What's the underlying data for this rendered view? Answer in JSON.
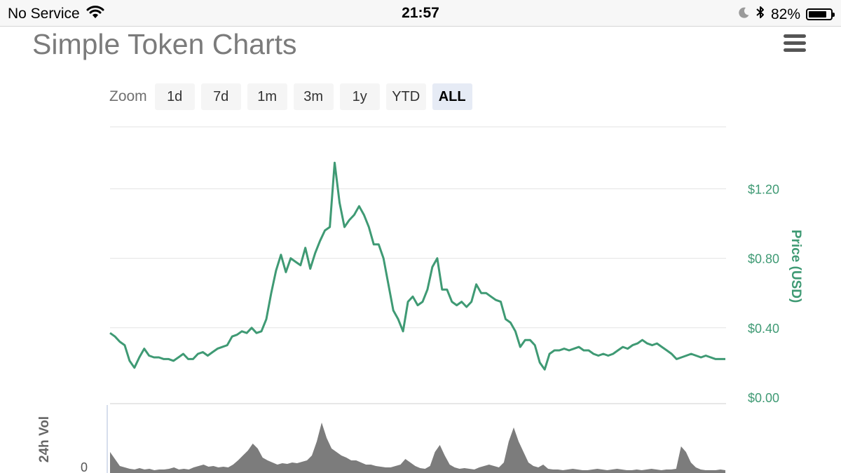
{
  "status_bar": {
    "carrier": "No Service",
    "time": "21:57",
    "battery_percent": "82%",
    "battery_level": 0.82,
    "icons": [
      "wifi-icon",
      "moon-icon",
      "bluetooth-icon",
      "battery-icon"
    ]
  },
  "header": {
    "title": "Simple Token Charts",
    "menu_icon": "hamburger-menu-icon"
  },
  "zoom": {
    "label": "Zoom",
    "buttons": [
      "1d",
      "7d",
      "1m",
      "3m",
      "1y",
      "YTD",
      "ALL"
    ],
    "selected": "ALL"
  },
  "colors": {
    "price_line": "#3f9a74",
    "volume_fill": "#7c7c7c",
    "grid": "#e3e3e3",
    "axis_label": "#3f9a74"
  },
  "chart_data": [
    {
      "type": "line",
      "ylabel": "Price (USD)",
      "y_ticks": [
        "$0.00",
        "$0.40",
        "$0.80",
        "$1.20"
      ],
      "y_tick_values": [
        0,
        0.4,
        0.8,
        1.2
      ],
      "ylim": [
        0,
        1.6
      ],
      "grid": true,
      "series": [
        {
          "values": [
            0.37,
            0.35,
            0.32,
            0.3,
            0.21,
            0.17,
            0.23,
            0.28,
            0.24,
            0.23,
            0.23,
            0.22,
            0.22,
            0.21,
            0.23,
            0.25,
            0.22,
            0.22,
            0.25,
            0.26,
            0.24,
            0.26,
            0.28,
            0.29,
            0.3,
            0.35,
            0.36,
            0.38,
            0.37,
            0.4,
            0.37,
            0.38,
            0.45,
            0.6,
            0.73,
            0.82,
            0.72,
            0.8,
            0.78,
            0.76,
            0.86,
            0.74,
            0.83,
            0.9,
            0.96,
            0.98,
            1.35,
            1.12,
            0.98,
            1.02,
            1.05,
            1.1,
            1.05,
            0.98,
            0.88,
            0.88,
            0.8,
            0.65,
            0.5,
            0.45,
            0.38,
            0.55,
            0.58,
            0.53,
            0.55,
            0.62,
            0.75,
            0.8,
            0.62,
            0.62,
            0.55,
            0.53,
            0.55,
            0.52,
            0.55,
            0.65,
            0.6,
            0.6,
            0.58,
            0.56,
            0.55,
            0.45,
            0.43,
            0.38,
            0.29,
            0.33,
            0.33,
            0.3,
            0.2,
            0.16,
            0.25,
            0.27,
            0.27,
            0.28,
            0.27,
            0.28,
            0.29,
            0.27,
            0.27,
            0.25,
            0.24,
            0.25,
            0.24,
            0.25,
            0.27,
            0.29,
            0.28,
            0.3,
            0.31,
            0.33,
            0.31,
            0.3,
            0.31,
            0.29,
            0.27,
            0.25,
            0.22,
            0.23,
            0.24,
            0.25,
            0.24,
            0.23,
            0.24,
            0.23,
            0.22,
            0.22,
            0.22
          ]
        }
      ]
    },
    {
      "type": "area",
      "ylabel": "24h Vol",
      "y_ticks": [
        "0"
      ],
      "y_tick_values": [
        0
      ],
      "ylim": [
        0,
        1
      ],
      "grid": false,
      "series": [
        {
          "values": [
            0.3,
            0.2,
            0.1,
            0.08,
            0.06,
            0.05,
            0.07,
            0.05,
            0.06,
            0.04,
            0.05,
            0.05,
            0.06,
            0.08,
            0.05,
            0.06,
            0.05,
            0.08,
            0.1,
            0.12,
            0.09,
            0.1,
            0.08,
            0.09,
            0.08,
            0.12,
            0.18,
            0.25,
            0.32,
            0.42,
            0.35,
            0.22,
            0.18,
            0.15,
            0.12,
            0.14,
            0.13,
            0.15,
            0.14,
            0.16,
            0.18,
            0.25,
            0.45,
            0.72,
            0.5,
            0.35,
            0.3,
            0.25,
            0.22,
            0.18,
            0.18,
            0.15,
            0.12,
            0.12,
            0.1,
            0.09,
            0.08,
            0.08,
            0.1,
            0.12,
            0.2,
            0.15,
            0.1,
            0.07,
            0.06,
            0.1,
            0.3,
            0.4,
            0.25,
            0.12,
            0.08,
            0.06,
            0.07,
            0.06,
            0.05,
            0.08,
            0.1,
            0.12,
            0.1,
            0.08,
            0.15,
            0.45,
            0.65,
            0.45,
            0.3,
            0.15,
            0.1,
            0.08,
            0.12,
            0.06,
            0.05,
            0.05,
            0.04,
            0.05,
            0.06,
            0.05,
            0.04,
            0.04,
            0.05,
            0.06,
            0.05,
            0.04,
            0.05,
            0.06,
            0.05,
            0.04,
            0.04,
            0.05,
            0.04,
            0.05,
            0.06,
            0.05,
            0.04,
            0.05,
            0.05,
            0.06,
            0.38,
            0.3,
            0.15,
            0.08,
            0.05,
            0.04,
            0.04,
            0.04,
            0.05,
            0.04
          ]
        }
      ]
    }
  ]
}
